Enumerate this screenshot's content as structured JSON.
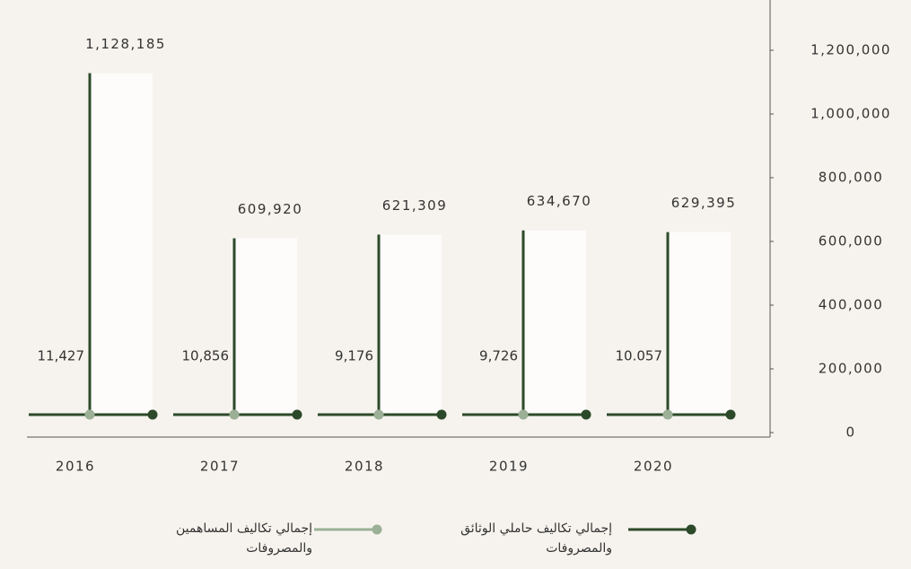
{
  "chart_data": {
    "type": "bar",
    "categories": [
      "2016",
      "2017",
      "2018",
      "2019",
      "2020"
    ],
    "series": [
      {
        "name": "إجمالي تكاليف حاملي الوثائق والمصروفات",
        "color": "#2c4a2a",
        "values": [
          1128185,
          609920,
          621309,
          634670,
          629395
        ],
        "value_labels": [
          "1,128,185",
          "609,920",
          "621,309",
          "634,670",
          "629,395"
        ]
      },
      {
        "name": "إجمالي تكاليف المساهمين والمصروفات",
        "color": "#9bb096",
        "values": [
          11427,
          10856,
          9176,
          9726,
          10057
        ],
        "value_labels": [
          "11,427",
          "10,856",
          "9,176",
          "9,726",
          "10.057"
        ]
      }
    ],
    "ylim": [
      0,
      1200000
    ],
    "yticks": [
      0,
      {
        "value": 200000,
        "label": "200,000"
      },
      {
        "value": 400000,
        "label": "400,000"
      },
      {
        "value": 600000,
        "label": "600,000"
      },
      {
        "value": 800000,
        "label": "800,000"
      },
      {
        "value": 1000000,
        "label": "1,000,000"
      },
      {
        "value": 1200000,
        "label": "1,200,000"
      }
    ]
  }
}
